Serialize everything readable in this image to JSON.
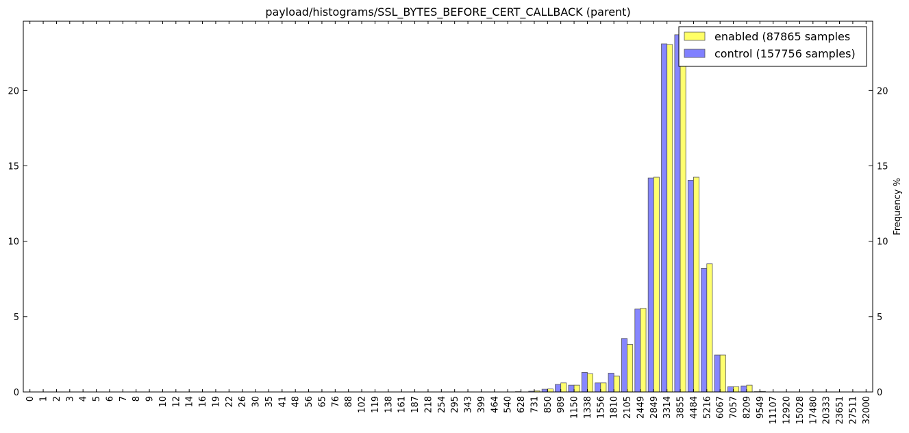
{
  "chart_data": {
    "type": "bar",
    "title": "payload/histograms/SSL_BYTES_BEFORE_CERT_CALLBACK (parent)",
    "xlabel": "",
    "ylabel": "Frequency %",
    "ylim": [
      0,
      24.6
    ],
    "yticks": [
      0,
      5,
      10,
      15,
      20
    ],
    "grid": false,
    "legend_position": "top-right",
    "categories": [
      "0",
      "1",
      "2",
      "3",
      "4",
      "5",
      "6",
      "7",
      "8",
      "9",
      "10",
      "12",
      "14",
      "16",
      "19",
      "22",
      "26",
      "30",
      "35",
      "41",
      "48",
      "56",
      "65",
      "76",
      "88",
      "102",
      "119",
      "138",
      "161",
      "187",
      "218",
      "254",
      "295",
      "343",
      "399",
      "464",
      "540",
      "628",
      "731",
      "850",
      "989",
      "1150",
      "1338",
      "1556",
      "1810",
      "2105",
      "2449",
      "2849",
      "3314",
      "3855",
      "4484",
      "5216",
      "6067",
      "7057",
      "8209",
      "9549",
      "11107",
      "12920",
      "15028",
      "17480",
      "20333",
      "23651",
      "27511",
      "32000"
    ],
    "series": [
      {
        "name": "enabled (87865 samples",
        "color": "#ffff66",
        "values": [
          0,
          0,
          0,
          0,
          0,
          0,
          0,
          0,
          0,
          0,
          0,
          0,
          0,
          0,
          0,
          0,
          0,
          0,
          0,
          0,
          0,
          0,
          0,
          0,
          0,
          0,
          0,
          0,
          0,
          0,
          0,
          0,
          0,
          0,
          0,
          0,
          0,
          0,
          0.08,
          0.2,
          0.6,
          0.45,
          1.2,
          0.6,
          1.05,
          3.15,
          5.55,
          14.25,
          23.05,
          22.2,
          14.25,
          8.5,
          2.45,
          0.35,
          0.45,
          0.03,
          0,
          0,
          0,
          0,
          0,
          0,
          0,
          0
        ]
      },
      {
        "name": "control (157756 samples)",
        "color": "#8080ff",
        "values": [
          0,
          0,
          0,
          0,
          0,
          0,
          0,
          0,
          0,
          0,
          0,
          0,
          0,
          0,
          0,
          0,
          0,
          0,
          0,
          0,
          0,
          0,
          0,
          0,
          0,
          0,
          0,
          0,
          0,
          0,
          0,
          0,
          0,
          0,
          0,
          0,
          0,
          0.02,
          0.05,
          0.18,
          0.5,
          0.45,
          1.3,
          0.6,
          1.25,
          3.55,
          5.5,
          14.2,
          23.1,
          23.7,
          14.05,
          8.2,
          2.45,
          0.35,
          0.4,
          0.02,
          0,
          0,
          0,
          0,
          0,
          0,
          0,
          0
        ]
      }
    ]
  }
}
